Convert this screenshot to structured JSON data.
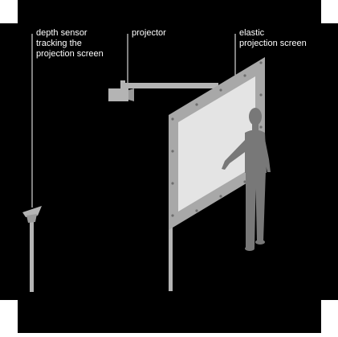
{
  "colors": {
    "background": "#000000",
    "page": "#ffffff",
    "screen_frame": "#a8a8a8",
    "screen_surface": "#e4e4e4",
    "person": "#787878",
    "equipment": "#b4b4b4",
    "callout_line": "#ffffff",
    "label_text": "#ffffff"
  },
  "labels": {
    "depth_sensor": [
      "depth sensor",
      "tracking the",
      "projection screen"
    ],
    "projector": "projector",
    "elastic_screen": [
      "elastic",
      "projection screen"
    ]
  },
  "icons": {
    "depth_sensor": "depth-sensor-icon",
    "projector": "projector-icon",
    "person": "person-silhouette-icon"
  }
}
